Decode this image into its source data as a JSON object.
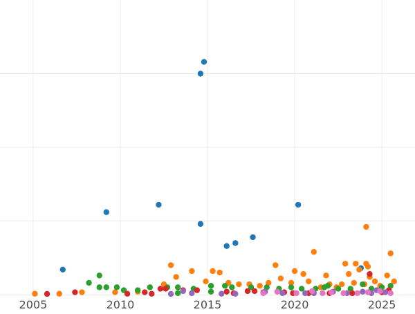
{
  "chart_data": {
    "type": "scatter",
    "title": "",
    "xlabel": "",
    "ylabel": "",
    "xlim": [
      2003.1,
      2026.9
    ],
    "ylim": [
      0,
      100
    ],
    "x_ticks": [
      2005,
      2010,
      2015,
      2020,
      2025
    ],
    "x_tick_labels": [
      "2005",
      "2010",
      "2015",
      "2020",
      "2025"
    ],
    "y_gridlines": [
      25,
      50,
      75
    ],
    "grid": true,
    "series": [
      {
        "color": "#1f77b4",
        "points": [
          [
            2014.8,
            79
          ],
          [
            2014.6,
            75
          ],
          [
            2009.2,
            28
          ],
          [
            2012.2,
            30.5
          ],
          [
            2014.6,
            24
          ],
          [
            2020.2,
            30.5
          ],
          [
            2017.6,
            19.5
          ],
          [
            2016.6,
            17.5
          ],
          [
            2016.1,
            16.5
          ],
          [
            2006.7,
            8.5
          ],
          [
            2023.8,
            9
          ]
        ]
      },
      {
        "color": "#ff7f0e",
        "points": [
          [
            2005.1,
            0.3
          ],
          [
            2006.5,
            0.3
          ],
          [
            2007.8,
            0.8
          ],
          [
            2009.7,
            0.8
          ],
          [
            2011.0,
            1.0
          ],
          [
            2012.5,
            3.5
          ],
          [
            2012.9,
            10
          ],
          [
            2013.2,
            6
          ],
          [
            2014.1,
            8
          ],
          [
            2014.9,
            4.5
          ],
          [
            2015.3,
            8
          ],
          [
            2015.7,
            7.5
          ],
          [
            2016.2,
            4
          ],
          [
            2017.4,
            3.5
          ],
          [
            2018.5,
            4
          ],
          [
            2018.9,
            10
          ],
          [
            2019.2,
            5.5
          ],
          [
            2019.8,
            4
          ],
          [
            2020.0,
            8
          ],
          [
            2020.5,
            7
          ],
          [
            2020.8,
            4.5
          ],
          [
            2021.1,
            14.5
          ],
          [
            2021.5,
            2.5
          ],
          [
            2021.8,
            6.5
          ],
          [
            2022.0,
            3.5
          ],
          [
            2022.4,
            2.5
          ],
          [
            2022.7,
            3.5
          ],
          [
            2022.9,
            10.5
          ],
          [
            2023.1,
            7
          ],
          [
            2023.4,
            4
          ],
          [
            2023.5,
            10.5
          ],
          [
            2023.7,
            8.5
          ],
          [
            2024.0,
            3.5
          ],
          [
            2024.1,
            10.5
          ],
          [
            2024.2,
            9.5
          ],
          [
            2024.3,
            6
          ],
          [
            2024.6,
            4.5
          ],
          [
            2024.9,
            3
          ],
          [
            2025.3,
            6.5
          ],
          [
            2025.5,
            14
          ],
          [
            2025.7,
            4.5
          ],
          [
            2024.1,
            23
          ],
          [
            2016.8,
            3.5
          ],
          [
            2018.0,
            3
          ],
          [
            2021.9,
            3
          ]
        ]
      },
      {
        "color": "#2ca02c",
        "points": [
          [
            2008.2,
            4
          ],
          [
            2008.8,
            2.5
          ],
          [
            2008.8,
            6.5
          ],
          [
            2009.2,
            2.5
          ],
          [
            2009.8,
            2.5
          ],
          [
            2010.2,
            1.5
          ],
          [
            2011.0,
            1.5
          ],
          [
            2011.7,
            2.5
          ],
          [
            2012.7,
            2.5
          ],
          [
            2013.3,
            2.5
          ],
          [
            2013.3,
            0.5
          ],
          [
            2014.2,
            2
          ],
          [
            2015.2,
            3
          ],
          [
            2015.2,
            1
          ],
          [
            2016.0,
            3
          ],
          [
            2016.4,
            2.5
          ],
          [
            2017.5,
            2.5
          ],
          [
            2018.4,
            2.5
          ],
          [
            2019.1,
            2
          ],
          [
            2019.8,
            2.5
          ],
          [
            2020.4,
            2
          ],
          [
            2021.2,
            2
          ],
          [
            2021.7,
            2.5
          ],
          [
            2021.9,
            3
          ],
          [
            2022.5,
            2
          ],
          [
            2023.2,
            2
          ],
          [
            2023.9,
            3.5
          ],
          [
            2024.4,
            2
          ],
          [
            2025.0,
            2.5
          ],
          [
            2025.5,
            3
          ]
        ]
      },
      {
        "color": "#d62728",
        "points": [
          [
            2005.8,
            0.2
          ],
          [
            2007.4,
            0.8
          ],
          [
            2010.4,
            0.3
          ],
          [
            2011.4,
            0.8
          ],
          [
            2011.8,
            0.3
          ],
          [
            2012.3,
            2
          ],
          [
            2012.6,
            2
          ],
          [
            2013.6,
            1.5
          ],
          [
            2014.4,
            1.5
          ],
          [
            2016.1,
            1
          ],
          [
            2016.5,
            0.5
          ],
          [
            2017.3,
            1.2
          ],
          [
            2017.7,
            1.2
          ],
          [
            2018.2,
            0.8
          ],
          [
            2019.4,
            0.8
          ],
          [
            2019.9,
            0.5
          ],
          [
            2020.8,
            0.5
          ],
          [
            2022.0,
            0.5
          ],
          [
            2023.3,
            0.5
          ],
          [
            2024.3,
            7
          ],
          [
            2025.0,
            0.8
          ],
          [
            2025.4,
            1.5
          ]
        ]
      },
      {
        "color": "#9467bd",
        "points": [
          [
            2012.9,
            0.2
          ],
          [
            2013.6,
            1.2
          ],
          [
            2014.1,
            0.5
          ],
          [
            2015.8,
            0.3
          ],
          [
            2016.6,
            0.3
          ],
          [
            2018.3,
            1
          ],
          [
            2019.3,
            0.5
          ],
          [
            2020.6,
            0.5
          ],
          [
            2021.1,
            0.5
          ],
          [
            2022.2,
            1
          ],
          [
            2023.0,
            0.5
          ],
          [
            2023.9,
            1
          ],
          [
            2024.4,
            0.5
          ],
          [
            2024.7,
            1.5
          ],
          [
            2025.2,
            0.8
          ]
        ]
      },
      {
        "color": "#e377c2",
        "points": [
          [
            2018.2,
            0.5
          ],
          [
            2019.0,
            1
          ],
          [
            2020.1,
            0.5
          ],
          [
            2021.0,
            1.2
          ],
          [
            2021.6,
            0.5
          ],
          [
            2022.1,
            0.8
          ],
          [
            2022.8,
            0.5
          ],
          [
            2023.6,
            0.5
          ],
          [
            2024.2,
            0.8
          ],
          [
            2024.9,
            1.2
          ],
          [
            2025.5,
            0.5
          ]
        ]
      }
    ]
  }
}
